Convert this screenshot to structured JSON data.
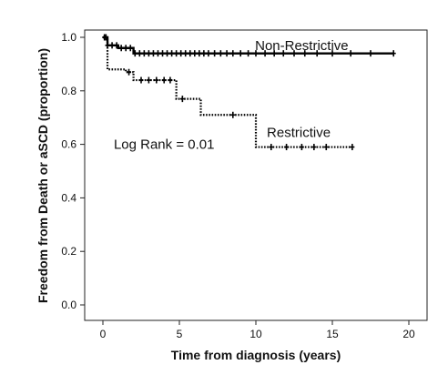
{
  "chart_data": {
    "type": "line",
    "xlabel": "Time from diagnosis (years)",
    "ylabel": "Freedom from Death or aSCD (proportion)",
    "xlim": [
      -2,
      21
    ],
    "ylim": [
      -0.05,
      1.02
    ],
    "xticks": [
      0,
      5,
      10,
      15,
      20
    ],
    "yticks": [
      0.0,
      0.2,
      0.4,
      0.6,
      0.8,
      1.0
    ],
    "xtick_labels": [
      "0",
      "5",
      "10",
      "15",
      "20"
    ],
    "ytick_labels": [
      "0.0",
      "0.2",
      "0.4",
      "0.6",
      "0.8",
      "1.0"
    ],
    "grid": false,
    "series": [
      {
        "name": "Non-Restrictive",
        "style": "solid",
        "color": "#000000",
        "steps": [
          [
            0,
            1.0
          ],
          [
            0.3,
            0.97
          ],
          [
            1.0,
            0.96
          ],
          [
            2.0,
            0.94
          ],
          [
            19.0,
            0.94
          ]
        ],
        "censored": [
          0.2,
          0.3,
          0.6,
          0.9,
          1.2,
          1.5,
          1.8,
          2.1,
          2.4,
          2.7,
          3.0,
          3.3,
          3.6,
          3.9,
          4.2,
          4.5,
          4.8,
          5.1,
          5.4,
          5.7,
          6.0,
          6.3,
          6.6,
          6.9,
          7.3,
          7.7,
          8.1,
          8.5,
          9.0,
          9.5,
          10.0,
          10.6,
          11.2,
          11.8,
          12.5,
          13.2,
          14.0,
          15.0,
          16.2,
          17.5,
          19.0
        ]
      },
      {
        "name": "Restrictive",
        "style": "dotted",
        "color": "#000000",
        "steps": [
          [
            0,
            1.0
          ],
          [
            0.3,
            0.88
          ],
          [
            1.5,
            0.87
          ],
          [
            2.0,
            0.84
          ],
          [
            4.8,
            0.77
          ],
          [
            6.4,
            0.71
          ],
          [
            10.0,
            0.59
          ],
          [
            16.3,
            0.59
          ]
        ],
        "censored": [
          0.1,
          1.7,
          2.5,
          3.0,
          3.5,
          4.0,
          4.4,
          5.2,
          8.5,
          11.0,
          12.0,
          13.0,
          13.8,
          14.6,
          16.3
        ]
      }
    ],
    "annotations": [
      {
        "text": "Non-Restrictive",
        "x": 13.0,
        "y": 0.97
      },
      {
        "text": "Restrictive",
        "x": 12.8,
        "y": 0.645
      },
      {
        "text": "Log Rank = 0.01",
        "x": 4.0,
        "y": 0.6
      }
    ]
  }
}
